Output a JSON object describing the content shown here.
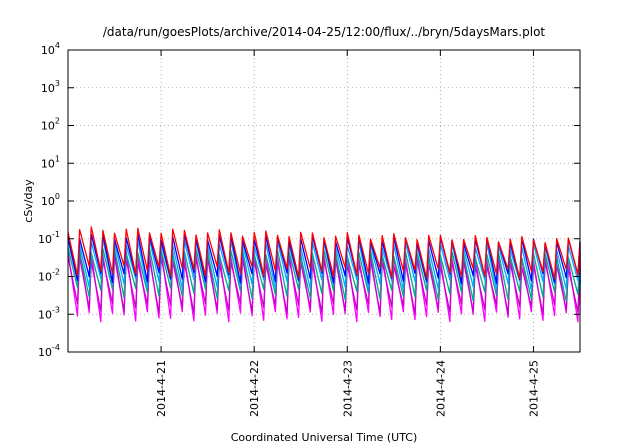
{
  "chart_data": {
    "type": "line",
    "title": "/data/run/goesPlots/archive/2014-04-25/12:00/flux/../bryn/5daysMars.plot",
    "xlabel": "Coordinated Universal Time (UTC)",
    "ylabel": "cSv/day",
    "y_scale": "log",
    "ylim": [
      0.0001,
      10000
    ],
    "xlim": [
      "2014-04-20T00:00",
      "2014-04-25T12:00"
    ],
    "y_ticks": [
      {
        "value": 0.0001,
        "base": "10",
        "exp": "-4"
      },
      {
        "value": 0.001,
        "base": "10",
        "exp": "-3"
      },
      {
        "value": 0.01,
        "base": "10",
        "exp": "-2"
      },
      {
        "value": 0.1,
        "base": "10",
        "exp": "-1"
      },
      {
        "value": 1,
        "base": "10",
        "exp": "0"
      },
      {
        "value": 10,
        "base": "10",
        "exp": "1"
      },
      {
        "value": 100,
        "base": "10",
        "exp": "2"
      },
      {
        "value": 1000,
        "base": "10",
        "exp": "3"
      },
      {
        "value": 10000,
        "base": "10",
        "exp": "4"
      }
    ],
    "x_ticks": [
      {
        "value": "2014-04-21T00:00",
        "label": "2014-4-21"
      },
      {
        "value": "2014-04-22T00:00",
        "label": "2014-4-22"
      },
      {
        "value": "2014-04-23T00:00",
        "label": "2014-4-23"
      },
      {
        "value": "2014-04-24T00:00",
        "label": "2014-4-24"
      },
      {
        "value": "2014-04-25T00:00",
        "label": "2014-4-25"
      }
    ],
    "grid": true,
    "cycle_period_hours": 3,
    "series": [
      {
        "color": "#ff00ff",
        "peak_start": 0.045,
        "peak_end": 0.03,
        "trough_start": 0.0009,
        "trough_end": 0.0009
      },
      {
        "color": "#cc00cc",
        "peak_start": 0.03,
        "peak_end": 0.02,
        "trough_start": 0.0015,
        "trough_end": 0.0014
      },
      {
        "color": "#00aa88",
        "peak_start": 0.05,
        "peak_end": 0.035,
        "trough_start": 0.004,
        "trough_end": 0.003
      },
      {
        "color": "#00aaff",
        "peak_start": 0.085,
        "peak_end": 0.06,
        "trough_start": 0.007,
        "trough_end": 0.006
      },
      {
        "color": "#0000ff",
        "peak_start": 0.12,
        "peak_end": 0.085,
        "trough_start": 0.01,
        "trough_end": 0.009
      },
      {
        "color": "#ff0000",
        "peak_start": 0.18,
        "peak_end": 0.09,
        "trough_start": 0.015,
        "trough_end": 0.012
      }
    ]
  }
}
